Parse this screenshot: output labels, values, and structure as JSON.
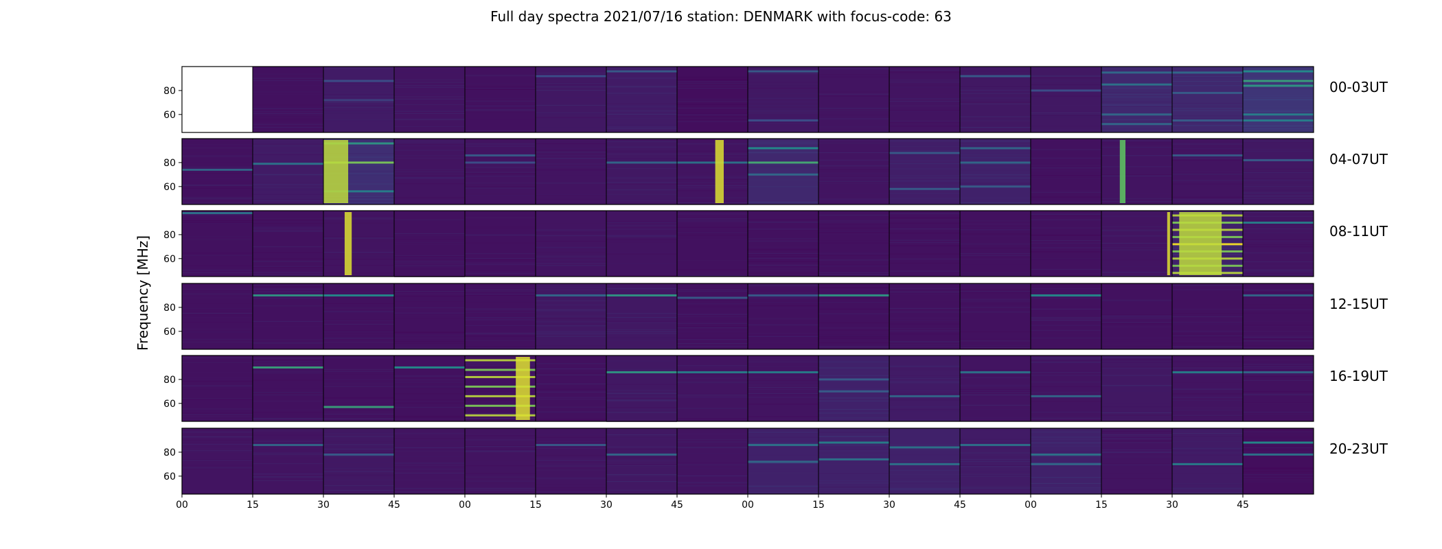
{
  "chart_data": {
    "type": "heatmap",
    "title": "Full day spectra 2021/07/16 station: DENMARK with focus-code: 63",
    "ylabel": "Frequency [MHz]",
    "y_ticks": [
      "80",
      "60"
    ],
    "ylim": [
      45,
      100
    ],
    "x_ticks": [
      "00",
      "15",
      "30",
      "45",
      "00",
      "15",
      "30",
      "45",
      "00",
      "15",
      "30",
      "45",
      "00",
      "15",
      "30",
      "45"
    ],
    "colormap": [
      "#440154",
      "#3b528b",
      "#21918c",
      "#5ec962",
      "#fde725"
    ],
    "rows": [
      {
        "label": "00-03UT",
        "panels": [
          {
            "blank": true,
            "level": 0,
            "bands": []
          },
          {
            "level": 0.05,
            "bands": []
          },
          {
            "level": 0.08,
            "bands": [
              [
                88,
                0.25
              ],
              [
                72,
                0.2
              ]
            ]
          },
          {
            "level": 0.06,
            "bands": []
          },
          {
            "level": 0.05,
            "bands": []
          },
          {
            "level": 0.07,
            "bands": [
              [
                92,
                0.25
              ]
            ]
          },
          {
            "level": 0.08,
            "bands": [
              [
                96,
                0.3
              ]
            ]
          },
          {
            "level": 0.04,
            "bands": []
          },
          {
            "level": 0.07,
            "bands": [
              [
                96,
                0.3
              ],
              [
                55,
                0.25
              ]
            ]
          },
          {
            "level": 0.06,
            "bands": []
          },
          {
            "level": 0.06,
            "bands": []
          },
          {
            "level": 0.07,
            "bands": [
              [
                92,
                0.3
              ]
            ]
          },
          {
            "level": 0.07,
            "bands": [
              [
                80,
                0.25
              ]
            ]
          },
          {
            "level": 0.12,
            "bands": [
              [
                95,
                0.35
              ],
              [
                85,
                0.4
              ],
              [
                60,
                0.35
              ],
              [
                52,
                0.35
              ]
            ]
          },
          {
            "level": 0.12,
            "bands": [
              [
                95,
                0.35
              ],
              [
                78,
                0.3
              ],
              [
                55,
                0.3
              ]
            ]
          },
          {
            "level": 0.16,
            "bands": [
              [
                96,
                0.5
              ],
              [
                88,
                0.6
              ],
              [
                84,
                0.55
              ],
              [
                60,
                0.45
              ],
              [
                55,
                0.45
              ]
            ]
          }
        ]
      },
      {
        "label": "04-07UT",
        "panels": [
          {
            "level": 0.05,
            "bands": [
              [
                74,
                0.35
              ]
            ]
          },
          {
            "level": 0.08,
            "bands": [
              [
                79,
                0.4
              ]
            ]
          },
          {
            "level": 0.14,
            "bands": [
              [
                96,
                0.55
              ],
              [
                80,
                0.8
              ],
              [
                56,
                0.45
              ]
            ],
            "bursts": [
              [
                0.1,
                0.9,
                0.35
              ]
            ]
          },
          {
            "level": 0.06,
            "bands": []
          },
          {
            "level": 0.06,
            "bands": [
              [
                86,
                0.3
              ],
              [
                80,
                0.25
              ]
            ]
          },
          {
            "level": 0.06,
            "bands": []
          },
          {
            "level": 0.07,
            "bands": [
              [
                80,
                0.35
              ]
            ]
          },
          {
            "level": 0.06,
            "bands": [
              [
                80,
                0.4
              ]
            ],
            "bursts": [
              [
                0.6,
                0.95,
                0.12
              ]
            ]
          },
          {
            "level": 0.12,
            "bands": [
              [
                92,
                0.5
              ],
              [
                80,
                0.65
              ],
              [
                70,
                0.35
              ]
            ]
          },
          {
            "level": 0.06,
            "bands": []
          },
          {
            "level": 0.09,
            "bands": [
              [
                88,
                0.3
              ],
              [
                58,
                0.3
              ]
            ]
          },
          {
            "level": 0.1,
            "bands": [
              [
                92,
                0.35
              ],
              [
                80,
                0.35
              ],
              [
                60,
                0.3
              ]
            ]
          },
          {
            "level": 0.05,
            "bands": []
          },
          {
            "level": 0.06,
            "bands": [],
            "bursts": [
              [
                0.3,
                0.75,
                0.08
              ]
            ]
          },
          {
            "level": 0.06,
            "bands": [
              [
                86,
                0.3
              ]
            ]
          },
          {
            "level": 0.07,
            "bands": [
              [
                82,
                0.3
              ]
            ]
          }
        ]
      },
      {
        "label": "08-11UT",
        "panels": [
          {
            "level": 0.05,
            "bands": [
              [
                98,
                0.4
              ]
            ]
          },
          {
            "level": 0.05,
            "bands": []
          },
          {
            "level": 0.06,
            "bands": [],
            "bursts": [
              [
                0.35,
                0.95,
                0.1
              ]
            ]
          },
          {
            "level": 0.05,
            "bands": []
          },
          {
            "level": 0.05,
            "bands": []
          },
          {
            "level": 0.06,
            "bands": []
          },
          {
            "level": 0.06,
            "bands": []
          },
          {
            "level": 0.05,
            "bands": []
          },
          {
            "level": 0.05,
            "bands": []
          },
          {
            "level": 0.05,
            "bands": []
          },
          {
            "level": 0.05,
            "bands": []
          },
          {
            "level": 0.05,
            "bands": []
          },
          {
            "level": 0.05,
            "bands": []
          },
          {
            "level": 0.06,
            "bands": [],
            "bursts": [
              [
                0.95,
                0.95,
                0.04
              ]
            ]
          },
          {
            "level": 0.1,
            "bands": [
              [
                96,
                0.9
              ],
              [
                90,
                0.8
              ],
              [
                84,
                0.9
              ],
              [
                78,
                0.8
              ],
              [
                72,
                1.0
              ],
              [
                66,
                0.8
              ],
              [
                60,
                0.9
              ],
              [
                54,
                0.8
              ],
              [
                48,
                0.9
              ]
            ],
            "bursts": [
              [
                0.4,
                0.9,
                0.6
              ]
            ]
          },
          {
            "level": 0.06,
            "bands": [
              [
                90,
                0.45
              ]
            ]
          }
        ]
      },
      {
        "label": "12-15UT",
        "panels": [
          {
            "level": 0.05,
            "bands": []
          },
          {
            "level": 0.05,
            "bands": [
              [
                90,
                0.55
              ]
            ]
          },
          {
            "level": 0.05,
            "bands": [
              [
                90,
                0.5
              ]
            ]
          },
          {
            "level": 0.05,
            "bands": []
          },
          {
            "level": 0.05,
            "bands": []
          },
          {
            "level": 0.07,
            "bands": [
              [
                90,
                0.35
              ]
            ]
          },
          {
            "level": 0.07,
            "bands": [
              [
                90,
                0.55
              ]
            ]
          },
          {
            "level": 0.05,
            "bands": [
              [
                88,
                0.3
              ]
            ]
          },
          {
            "level": 0.05,
            "bands": [
              [
                90,
                0.3
              ]
            ]
          },
          {
            "level": 0.05,
            "bands": [
              [
                90,
                0.55
              ]
            ]
          },
          {
            "level": 0.05,
            "bands": []
          },
          {
            "level": 0.05,
            "bands": []
          },
          {
            "level": 0.05,
            "bands": [
              [
                90,
                0.5
              ]
            ]
          },
          {
            "level": 0.05,
            "bands": []
          },
          {
            "level": 0.05,
            "bands": []
          },
          {
            "level": 0.05,
            "bands": [
              [
                90,
                0.35
              ]
            ]
          }
        ]
      },
      {
        "label": "16-19UT",
        "panels": [
          {
            "level": 0.05,
            "bands": []
          },
          {
            "level": 0.05,
            "bands": [
              [
                90,
                0.6
              ]
            ]
          },
          {
            "level": 0.05,
            "bands": [
              [
                57,
                0.6
              ]
            ]
          },
          {
            "level": 0.05,
            "bands": [
              [
                90,
                0.5
              ]
            ]
          },
          {
            "level": 0.05,
            "bands": [
              [
                96,
                0.9
              ],
              [
                88,
                0.8
              ],
              [
                82,
                0.9
              ],
              [
                74,
                0.8
              ],
              [
                66,
                0.9
              ],
              [
                58,
                0.8
              ],
              [
                50,
                0.9
              ]
            ],
            "bursts": [
              [
                0.82,
                0.95,
                0.2
              ]
            ]
          },
          {
            "level": 0.05,
            "bands": []
          },
          {
            "level": 0.07,
            "bands": [
              [
                86,
                0.55
              ]
            ]
          },
          {
            "level": 0.06,
            "bands": [
              [
                86,
                0.45
              ]
            ]
          },
          {
            "level": 0.06,
            "bands": [
              [
                86,
                0.45
              ]
            ]
          },
          {
            "level": 0.1,
            "bands": [
              [
                80,
                0.3
              ],
              [
                70,
                0.3
              ]
            ]
          },
          {
            "level": 0.08,
            "bands": [
              [
                66,
                0.35
              ]
            ]
          },
          {
            "level": 0.06,
            "bands": [
              [
                86,
                0.4
              ]
            ]
          },
          {
            "level": 0.06,
            "bands": [
              [
                66,
                0.35
              ]
            ]
          },
          {
            "level": 0.07,
            "bands": []
          },
          {
            "level": 0.06,
            "bands": [
              [
                86,
                0.45
              ]
            ]
          },
          {
            "level": 0.05,
            "bands": [
              [
                86,
                0.35
              ]
            ]
          }
        ]
      },
      {
        "label": "20-23UT",
        "panels": [
          {
            "level": 0.06,
            "bands": []
          },
          {
            "level": 0.06,
            "bands": [
              [
                86,
                0.35
              ]
            ]
          },
          {
            "level": 0.07,
            "bands": [
              [
                78,
                0.3
              ]
            ]
          },
          {
            "level": 0.06,
            "bands": []
          },
          {
            "level": 0.06,
            "bands": []
          },
          {
            "level": 0.06,
            "bands": [
              [
                86,
                0.3
              ]
            ]
          },
          {
            "level": 0.07,
            "bands": [
              [
                78,
                0.35
              ]
            ]
          },
          {
            "level": 0.06,
            "bands": []
          },
          {
            "level": 0.1,
            "bands": [
              [
                86,
                0.4
              ],
              [
                72,
                0.35
              ]
            ]
          },
          {
            "level": 0.1,
            "bands": [
              [
                88,
                0.45
              ],
              [
                74,
                0.4
              ]
            ]
          },
          {
            "level": 0.1,
            "bands": [
              [
                84,
                0.4
              ],
              [
                70,
                0.4
              ]
            ]
          },
          {
            "level": 0.08,
            "bands": [
              [
                86,
                0.4
              ]
            ]
          },
          {
            "level": 0.1,
            "bands": [
              [
                78,
                0.4
              ],
              [
                70,
                0.35
              ]
            ]
          },
          {
            "level": 0.06,
            "bands": []
          },
          {
            "level": 0.08,
            "bands": [
              [
                70,
                0.45
              ]
            ]
          },
          {
            "level": 0.04,
            "bands": [
              [
                88,
                0.5
              ],
              [
                78,
                0.4
              ]
            ]
          }
        ]
      }
    ]
  }
}
